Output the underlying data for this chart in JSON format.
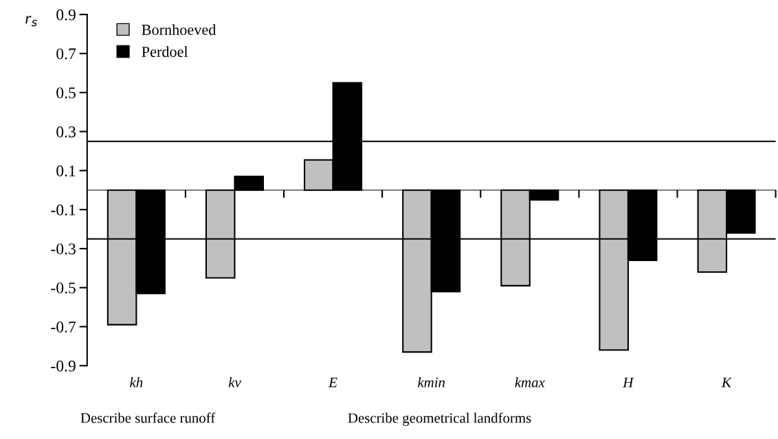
{
  "chart_data": {
    "type": "bar",
    "ylabel": "r$_{s}$",
    "categories": [
      "kh",
      "kv",
      "E",
      "kmin",
      "kmax",
      "H",
      "K"
    ],
    "series": [
      {
        "name": "Bornhoeved",
        "color": "#c0c0c0",
        "values": [
          -0.69,
          -0.45,
          0.155,
          -0.83,
          -0.49,
          -0.82,
          -0.42
        ]
      },
      {
        "name": "Perdoel",
        "color": "#000000",
        "values": [
          -0.53,
          0.07,
          0.55,
          -0.52,
          -0.05,
          -0.36,
          -0.22
        ]
      }
    ],
    "ylim": [
      -0.9,
      0.9
    ],
    "yticks": [
      {
        "value": -0.9,
        "label": "-0.9"
      },
      {
        "value": -0.7,
        "label": "-0.7"
      },
      {
        "value": -0.5,
        "label": "-0.5"
      },
      {
        "value": -0.3,
        "label": "-0.3"
      },
      {
        "value": -0.1,
        "label": "-0.1"
      },
      0.1,
      0.3,
      0.5,
      0.7,
      0.9
    ],
    "ref_lines": [
      {
        "axis": "y",
        "value": 0.25,
        "color": "#000000"
      },
      {
        "axis": "y",
        "value": -0.25,
        "color": "#000000"
      }
    ],
    "annotations": [
      "Describe surface runoff",
      "Describe geometrical landforms"
    ],
    "legend": "top left",
    "grid": false
  }
}
